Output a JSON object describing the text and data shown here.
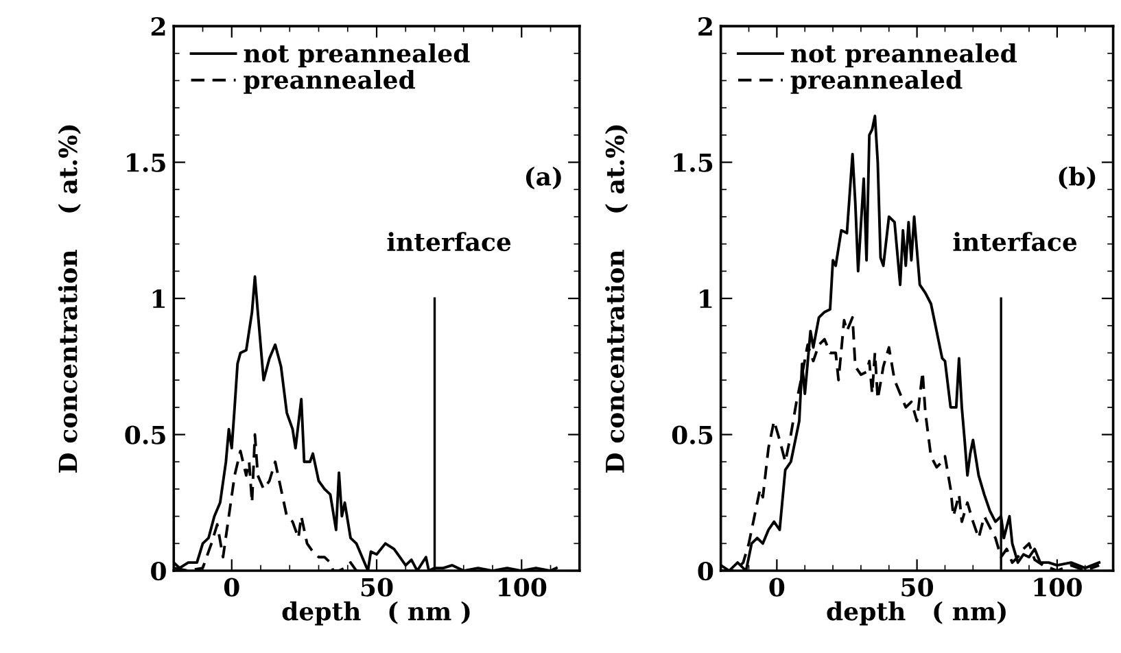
{
  "chart_data": [
    {
      "type": "line",
      "xlabel": "depth   ( nm )",
      "ylabel": "D concentration    ( at.%)",
      "xlim": [
        -20,
        120
      ],
      "ylim": [
        0,
        2
      ],
      "xticks": [
        0,
        50,
        100
      ],
      "yticks": [
        0,
        0.5,
        1,
        1.5,
        2
      ],
      "legend": "top left",
      "grid": false,
      "marker": "none",
      "annotations": [
        "(a)"
      ],
      "ref_lines": [
        {
          "axis": "x",
          "value": 70,
          "label": "interface",
          "color": "#000000"
        }
      ],
      "series": [
        {
          "name": "not preannealed",
          "color": "#000000",
          "line_style": "solid",
          "x": [
            -20,
            -18,
            -15,
            -12,
            -10,
            -8,
            -6,
            -4,
            -2,
            -1,
            0,
            1,
            2,
            3,
            5,
            7,
            8,
            9,
            11,
            13,
            15,
            17,
            19,
            21,
            22,
            24,
            25,
            27,
            28,
            30,
            32,
            34,
            36,
            37,
            38,
            39,
            41,
            43,
            45,
            47,
            48,
            50,
            53,
            56,
            58,
            60,
            62,
            64,
            67,
            68,
            70,
            73,
            76,
            80,
            85,
            90,
            95,
            100,
            105,
            110,
            112
          ],
          "values": [
            0.03,
            0.01,
            0.03,
            0.03,
            0.1,
            0.12,
            0.2,
            0.25,
            0.4,
            0.52,
            0.45,
            0.6,
            0.76,
            0.8,
            0.81,
            0.95,
            1.08,
            0.95,
            0.7,
            0.78,
            0.83,
            0.75,
            0.58,
            0.52,
            0.45,
            0.63,
            0.4,
            0.4,
            0.43,
            0.33,
            0.3,
            0.28,
            0.15,
            0.36,
            0.2,
            0.25,
            0.12,
            0.1,
            0.05,
            0.0,
            0.07,
            0.06,
            0.1,
            0.08,
            0.05,
            0.02,
            0.04,
            0.0,
            0.05,
            0.0,
            0.01,
            0.01,
            0.02,
            0.0,
            0.01,
            0.0,
            0.01,
            0.0,
            0.01,
            0.0,
            0.01
          ]
        },
        {
          "name": "preannealed",
          "color": "#000000",
          "line_style": "dashed",
          "x": [
            -20,
            -15,
            -10,
            -7,
            -5,
            -3,
            -1,
            1,
            3,
            5,
            6,
            7,
            8,
            9,
            11,
            13,
            15,
            17,
            19,
            21,
            23,
            24,
            26,
            28,
            30,
            32,
            34,
            35,
            37,
            39,
            41,
            43,
            45
          ],
          "values": [
            0.01,
            0.0,
            0.01,
            0.1,
            0.17,
            0.05,
            0.2,
            0.35,
            0.44,
            0.35,
            0.4,
            0.25,
            0.5,
            0.35,
            0.3,
            0.33,
            0.4,
            0.3,
            0.2,
            0.18,
            0.12,
            0.2,
            0.1,
            0.07,
            0.05,
            0.05,
            0.03,
            0.0,
            0.0,
            0.01,
            0.03,
            0.0,
            0.0
          ]
        }
      ]
    },
    {
      "type": "line",
      "xlabel": "depth   ( nm)",
      "ylabel": "D concentration    ( at.%)",
      "xlim": [
        -20,
        120
      ],
      "ylim": [
        0,
        2
      ],
      "xticks": [
        0,
        50,
        100
      ],
      "yticks": [
        0,
        0.5,
        1,
        1.5,
        2
      ],
      "legend": "top left",
      "grid": false,
      "marker": "none",
      "annotations": [
        "(b)"
      ],
      "ref_lines": [
        {
          "axis": "x",
          "value": 80,
          "label": "interface",
          "color": "#000000"
        }
      ],
      "series": [
        {
          "name": "not preannealed",
          "color": "#000000",
          "line_style": "solid",
          "x": [
            -20,
            -17,
            -14,
            -11,
            -9,
            -7,
            -5,
            -3,
            -1,
            1,
            3,
            5,
            6,
            8,
            9,
            10,
            12,
            13,
            15,
            17,
            19,
            20,
            21,
            23,
            25,
            27,
            28,
            29,
            31,
            32,
            33,
            34,
            35,
            36,
            37,
            38,
            40,
            42,
            44,
            45,
            46,
            47,
            48,
            49,
            51,
            53,
            55,
            57,
            59,
            60,
            62,
            64,
            65,
            66,
            67,
            68,
            69,
            70,
            72,
            74,
            76,
            78,
            80,
            81,
            83,
            84,
            86,
            88,
            90,
            92,
            94,
            97,
            100,
            105,
            110,
            115
          ],
          "values": [
            0.02,
            0.0,
            0.03,
            0.0,
            0.1,
            0.12,
            0.1,
            0.15,
            0.18,
            0.15,
            0.37,
            0.4,
            0.45,
            0.55,
            0.76,
            0.65,
            0.88,
            0.82,
            0.93,
            0.95,
            0.96,
            1.14,
            1.12,
            1.25,
            1.24,
            1.53,
            1.35,
            1.1,
            1.44,
            1.14,
            1.6,
            1.62,
            1.67,
            1.5,
            1.15,
            1.12,
            1.3,
            1.28,
            1.05,
            1.25,
            1.12,
            1.28,
            1.14,
            1.3,
            1.05,
            1.02,
            0.98,
            0.88,
            0.78,
            0.77,
            0.6,
            0.6,
            0.78,
            0.6,
            0.48,
            0.35,
            0.43,
            0.48,
            0.35,
            0.28,
            0.22,
            0.18,
            0.2,
            0.12,
            0.2,
            0.1,
            0.03,
            0.06,
            0.05,
            0.08,
            0.03,
            0.03,
            0.02,
            0.03,
            0.01,
            0.03
          ]
        },
        {
          "name": "preannealed",
          "color": "#000000",
          "line_style": "dashed",
          "x": [
            -20,
            -15,
            -12,
            -10,
            -8,
            -6,
            -5,
            -3,
            -1,
            1,
            3,
            5,
            7,
            9,
            11,
            13,
            15,
            17,
            19,
            21,
            22,
            24,
            25,
            27,
            28,
            30,
            32,
            33,
            34,
            35,
            36,
            38,
            40,
            42,
            44,
            46,
            48,
            50,
            52,
            53,
            55,
            57,
            59,
            60,
            62,
            63,
            65,
            66,
            68,
            70,
            72,
            74,
            76,
            78,
            80,
            82,
            84,
            86,
            88,
            90,
            92,
            95,
            100,
            105,
            110,
            115
          ],
          "values": [
            0.0,
            0.0,
            0.03,
            0.1,
            0.2,
            0.3,
            0.27,
            0.45,
            0.55,
            0.48,
            0.4,
            0.5,
            0.62,
            0.72,
            0.83,
            0.77,
            0.83,
            0.85,
            0.8,
            0.8,
            0.7,
            0.92,
            0.88,
            0.93,
            0.75,
            0.72,
            0.73,
            0.77,
            0.65,
            0.8,
            0.63,
            0.75,
            0.82,
            0.7,
            0.65,
            0.6,
            0.62,
            0.55,
            0.73,
            0.58,
            0.42,
            0.38,
            0.4,
            0.42,
            0.3,
            0.2,
            0.28,
            0.18,
            0.25,
            0.18,
            0.12,
            0.2,
            0.16,
            0.12,
            0.05,
            0.08,
            0.03,
            0.05,
            0.08,
            0.1,
            0.04,
            0.02,
            0.0,
            0.02,
            0.0,
            0.02
          ]
        }
      ]
    }
  ]
}
